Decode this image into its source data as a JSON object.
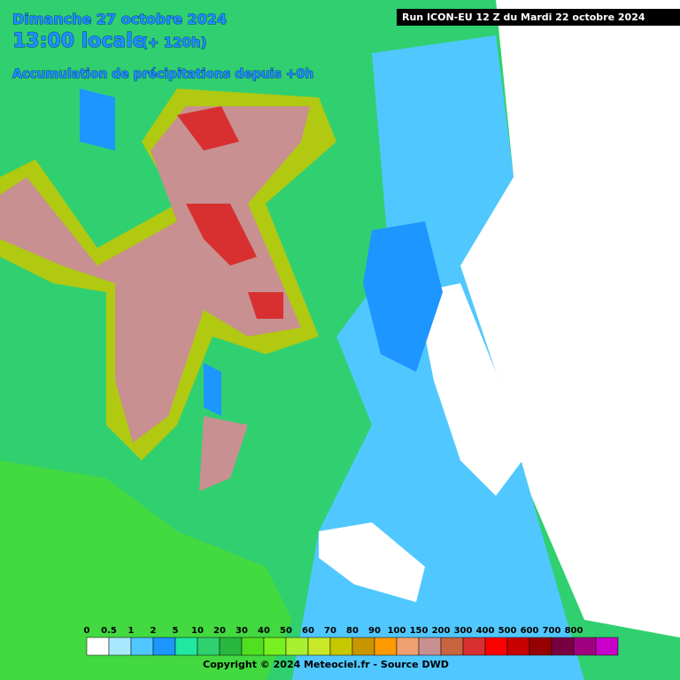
{
  "header": {
    "date": "Dimanche 27 octobre 2024",
    "time": "13:00 locale",
    "offset": "(+ 120h)",
    "subtitle": "Accumulation de précipitations depuis +0h",
    "run": "Run ICON-EU 12 Z du Mardi 22 octobre 2024"
  },
  "legend": {
    "items": [
      {
        "label": 0,
        "color": "#ffffff"
      },
      {
        "label": 0.5,
        "color": "#a8e8ff"
      },
      {
        "label": 1,
        "color": "#50c8ff"
      },
      {
        "label": 2,
        "color": "#1e96ff"
      },
      {
        "label": 5,
        "color": "#20e8a0"
      },
      {
        "label": 10,
        "color": "#30d070"
      },
      {
        "label": 20,
        "color": "#28b840"
      },
      {
        "label": 30,
        "color": "#50e020"
      },
      {
        "label": 40,
        "color": "#78f020"
      },
      {
        "label": 50,
        "color": "#a8f030"
      },
      {
        "label": 60,
        "color": "#c8e828"
      },
      {
        "label": 70,
        "color": "#c8c800"
      },
      {
        "label": 80,
        "color": "#c89600"
      },
      {
        "label": 90,
        "color": "#ff9a00"
      },
      {
        "label": 100,
        "color": "#f0a070"
      },
      {
        "label": 150,
        "color": "#c89090"
      },
      {
        "label": 200,
        "color": "#c86440"
      },
      {
        "label": 300,
        "color": "#d83030"
      },
      {
        "label": 400,
        "color": "#ff0000"
      },
      {
        "label": 500,
        "color": "#c80000"
      },
      {
        "label": 600,
        "color": "#960000"
      },
      {
        "label": 700,
        "color": "#780040"
      },
      {
        "label": 800,
        "color": "#a00080"
      }
    ],
    "extra_color": "#c800c8"
  },
  "footer": {
    "copyright": "Copyright © 2024 Meteociel.fr - Source DWD"
  }
}
